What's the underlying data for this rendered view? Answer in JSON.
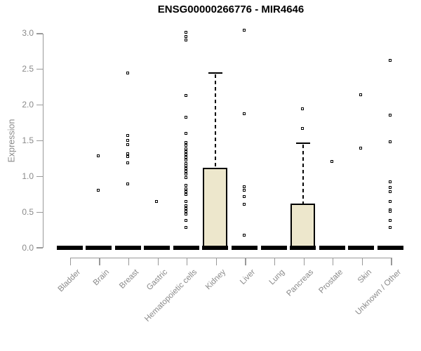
{
  "chart_data": {
    "type": "boxplot",
    "title": "ENSG00000266776 - MIR4646",
    "ylabel": "Expression",
    "xlabel": "",
    "ylim": [
      0.0,
      3.0
    ],
    "yticks": [
      0.0,
      0.5,
      1.0,
      1.5,
      2.0,
      2.5,
      3.0
    ],
    "ytick_labels": [
      "0.0",
      "0.5",
      "1.0",
      "1.5",
      "2.0",
      "2.5",
      "3.0"
    ],
    "grid": false,
    "x_label_rotation": 45,
    "categories": [
      "Bladder",
      "Brain",
      "Breast",
      "Gastric",
      "Hematopoietic cells",
      "Kidney",
      "Liver",
      "Lung",
      "Pancreas",
      "Prostate",
      "Skin",
      "Unknown / Other"
    ],
    "series": [
      {
        "name": "Bladder",
        "median": 0.0,
        "q1": 0.0,
        "q3": 0.0,
        "whisker_low": 0.0,
        "whisker_high": 0.0,
        "outliers": []
      },
      {
        "name": "Brain",
        "median": 0.0,
        "q1": 0.0,
        "q3": 0.0,
        "whisker_low": 0.0,
        "whisker_high": 0.0,
        "outliers": [
          1.28,
          0.8
        ]
      },
      {
        "name": "Breast",
        "median": 0.0,
        "q1": 0.0,
        "q3": 0.0,
        "whisker_low": 0.0,
        "whisker_high": 0.0,
        "outliers": [
          2.44,
          1.57,
          1.5,
          1.44,
          1.31,
          1.27,
          1.19,
          0.89
        ]
      },
      {
        "name": "Gastric",
        "median": 0.0,
        "q1": 0.0,
        "q3": 0.0,
        "whisker_low": 0.0,
        "whisker_high": 0.0,
        "outliers": [
          0.64
        ]
      },
      {
        "name": "Hematopoietic cells",
        "median": 0.0,
        "q1": 0.0,
        "q3": 0.0,
        "whisker_low": 0.0,
        "whisker_high": 0.0,
        "outliers": [
          3.01,
          2.96,
          2.91,
          2.13,
          1.82,
          1.6,
          1.47,
          1.43,
          1.38,
          1.34,
          1.3,
          1.26,
          1.22,
          1.18,
          1.15,
          1.11,
          1.07,
          1.03,
          0.98,
          0.87,
          0.82,
          0.78,
          0.74,
          0.64,
          0.59,
          0.55,
          0.51,
          0.47,
          0.38,
          0.28
        ]
      },
      {
        "name": "Kidney",
        "median": 0.0,
        "q1": 0.0,
        "q3": 1.12,
        "whisker_low": 0.0,
        "whisker_high": 2.45,
        "outliers": []
      },
      {
        "name": "Liver",
        "median": 0.0,
        "q1": 0.0,
        "q3": 0.0,
        "whisker_low": 0.0,
        "whisker_high": 0.0,
        "outliers": [
          3.04,
          1.87,
          0.85,
          0.8,
          0.71,
          0.6,
          0.17
        ]
      },
      {
        "name": "Lung",
        "median": 0.0,
        "q1": 0.0,
        "q3": 0.0,
        "whisker_low": 0.0,
        "whisker_high": 0.0,
        "outliers": []
      },
      {
        "name": "Pancreas",
        "median": 0.0,
        "q1": 0.0,
        "q3": 0.62,
        "whisker_low": 0.0,
        "whisker_high": 1.47,
        "outliers": [
          1.94,
          1.67
        ]
      },
      {
        "name": "Prostate",
        "median": 0.0,
        "q1": 0.0,
        "q3": 0.0,
        "whisker_low": 0.0,
        "whisker_high": 0.0,
        "outliers": [
          1.2
        ]
      },
      {
        "name": "Skin",
        "median": 0.0,
        "q1": 0.0,
        "q3": 0.0,
        "whisker_low": 0.0,
        "whisker_high": 0.0,
        "outliers": [
          2.14,
          1.39
        ]
      },
      {
        "name": "Unknown / Other",
        "median": 0.0,
        "q1": 0.0,
        "q3": 0.0,
        "whisker_low": 0.0,
        "whisker_high": 0.0,
        "outliers": [
          2.62,
          1.85,
          1.48,
          0.92,
          0.84,
          0.78,
          0.64,
          0.53,
          0.51,
          0.38,
          0.28
        ]
      }
    ],
    "colors": {
      "box_fill": "#EDE7CC",
      "box_border": "#000000",
      "median": "#000000",
      "outlier": "#000000",
      "axis": "#999999",
      "tick_text": "#8a8a8a",
      "title_text": "#000000",
      "background": "#ffffff"
    }
  }
}
